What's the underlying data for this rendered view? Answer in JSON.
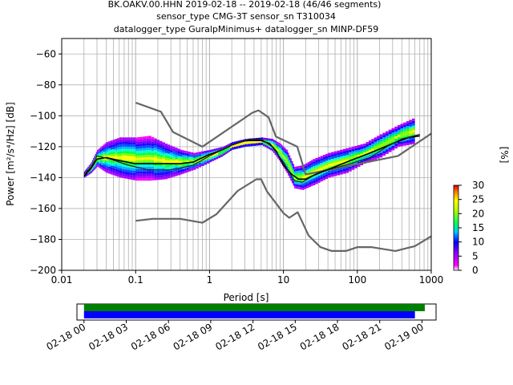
{
  "chart_data": [
    {
      "type": "heatmap",
      "title_lines": [
        "BK.OAKV.00.HHN   2019-02-18 -- 2019-02-18  (46/46 segments)",
        "sensor_type CMG-3T sensor_sn T310034",
        "datalogger_type GuralpMinimus+ datalogger_sn MINP-DF59"
      ],
      "xlabel": "Period [s]",
      "ylabel": "Power [m²/s⁴/Hz] [dB]",
      "x_scale": "log",
      "xlim": [
        0.01,
        1000
      ],
      "ylim": [
        -200,
        -50
      ],
      "xticks": [
        {
          "v": 0.01,
          "label": "0.01"
        },
        {
          "v": 0.1,
          "label": "0.1"
        },
        {
          "v": 1,
          "label": "1"
        },
        {
          "v": 10,
          "label": "10"
        },
        {
          "v": 100,
          "label": "100"
        },
        {
          "v": 1000,
          "label": "1000"
        }
      ],
      "yticks": [
        {
          "v": -60,
          "label": "−60"
        },
        {
          "v": -80,
          "label": "−80"
        },
        {
          "v": -100,
          "label": "−100"
        },
        {
          "v": -120,
          "label": "−120"
        },
        {
          "v": -140,
          "label": "−140"
        },
        {
          "v": -160,
          "label": "−160"
        },
        {
          "v": -180,
          "label": "−180"
        },
        {
          "v": -200,
          "label": "−200"
        }
      ],
      "grid": true,
      "series": [
        {
          "role": "noise-model-high",
          "color": "#666666",
          "points": [
            [
              0.1,
              -91.5
            ],
            [
              0.22,
              -97.4
            ],
            [
              0.32,
              -110.5
            ],
            [
              0.8,
              -120
            ],
            [
              3.8,
              -98
            ],
            [
              4.6,
              -96.5
            ],
            [
              6.3,
              -101
            ],
            [
              7.9,
              -113.5
            ],
            [
              15.4,
              -120
            ],
            [
              20,
              -138
            ],
            [
              354.8,
              -126
            ],
            [
              1000,
              -111.5
            ]
          ]
        },
        {
          "role": "noise-model-low",
          "color": "#666666",
          "points": [
            [
              0.1,
              -168
            ],
            [
              0.17,
              -166.7
            ],
            [
              0.4,
              -166.7
            ],
            [
              0.8,
              -169.2
            ],
            [
              1.24,
              -163.7
            ],
            [
              2.4,
              -148.6
            ],
            [
              4.3,
              -141.1
            ],
            [
              5,
              -141.1
            ],
            [
              6,
              -149
            ],
            [
              10,
              -163
            ],
            [
              12,
              -166
            ],
            [
              15.6,
              -162.4
            ],
            [
              21.9,
              -177.5
            ],
            [
              31.6,
              -185
            ],
            [
              45,
              -187.5
            ],
            [
              70,
              -187.5
            ],
            [
              101,
              -185
            ],
            [
              154,
              -185
            ],
            [
              328,
              -187.5
            ],
            [
              600,
              -184.4
            ],
            [
              1000,
              -178
            ]
          ]
        },
        {
          "role": "mean-psd",
          "color": "#000000",
          "points": [
            [
              0.02,
              -139
            ],
            [
              0.025,
              -134
            ],
            [
              0.03,
              -128
            ],
            [
              0.04,
              -127
            ],
            [
              0.06,
              -129
            ],
            [
              0.1,
              -131
            ],
            [
              0.2,
              -131
            ],
            [
              0.4,
              -131
            ],
            [
              0.6,
              -130
            ],
            [
              1,
              -125
            ],
            [
              1.5,
              -122
            ],
            [
              2,
              -119
            ],
            [
              3,
              -116
            ],
            [
              5,
              -116
            ],
            [
              6.5,
              -118
            ],
            [
              8,
              -123
            ],
            [
              10,
              -132
            ],
            [
              13,
              -138
            ],
            [
              16,
              -141
            ],
            [
              20,
              -141
            ],
            [
              30,
              -137
            ],
            [
              50,
              -133
            ],
            [
              80,
              -129
            ],
            [
              150,
              -124
            ],
            [
              300,
              -118
            ],
            [
              500,
              -114
            ],
            [
              700,
              -113
            ]
          ]
        },
        {
          "role": "mode-psd",
          "color": "#222222",
          "points": [
            [
              0.02,
              -138
            ],
            [
              0.025,
              -133
            ],
            [
              0.03,
              -126
            ],
            [
              0.045,
              -128
            ],
            [
              0.08,
              -132
            ],
            [
              0.15,
              -135
            ],
            [
              0.3,
              -135
            ],
            [
              0.6,
              -132
            ],
            [
              1,
              -126
            ],
            [
              2,
              -119
            ],
            [
              3.5,
              -115
            ],
            [
              5,
              -115
            ],
            [
              7,
              -120
            ],
            [
              10,
              -130
            ],
            [
              14,
              -142
            ],
            [
              18,
              -143
            ],
            [
              25,
              -139
            ],
            [
              40,
              -135
            ],
            [
              80,
              -131
            ],
            [
              150,
              -127
            ],
            [
              250,
              -120
            ],
            [
              400,
              -115
            ],
            [
              700,
              -112
            ]
          ]
        }
      ],
      "psd_density": {
        "description": "probability density of PSD in percent per period/power bin",
        "bands": [
          [
            0.02,
            -140,
            -136
          ],
          [
            0.025,
            -137,
            -130
          ],
          [
            0.03,
            -133,
            -122
          ],
          [
            0.04,
            -137,
            -117
          ],
          [
            0.06,
            -140,
            -114
          ],
          [
            0.1,
            -142,
            -114
          ],
          [
            0.15,
            -142,
            -113
          ],
          [
            0.25,
            -141,
            -118
          ],
          [
            0.4,
            -138,
            -122
          ],
          [
            0.6,
            -135,
            -124
          ],
          [
            1,
            -130,
            -122
          ],
          [
            1.5,
            -126,
            -120
          ],
          [
            2,
            -122,
            -117
          ],
          [
            3,
            -120,
            -115
          ],
          [
            5,
            -119,
            -114
          ],
          [
            7,
            -123,
            -115
          ],
          [
            9,
            -130,
            -118
          ],
          [
            11,
            -137,
            -122
          ],
          [
            14,
            -147,
            -133
          ],
          [
            18,
            -148,
            -132
          ],
          [
            25,
            -145,
            -128
          ],
          [
            40,
            -140,
            -124
          ],
          [
            70,
            -137,
            -121
          ],
          [
            120,
            -131,
            -118
          ],
          [
            200,
            -127,
            -112
          ],
          [
            350,
            -120,
            -106
          ],
          [
            600,
            -118,
            -101
          ]
        ]
      },
      "colorbar": {
        "label": "[%]",
        "min": 0,
        "max": 30,
        "ticks": [
          "0",
          "5",
          "10",
          "15",
          "20",
          "25",
          "30"
        ],
        "colormap": "pqlx"
      }
    },
    {
      "type": "timeline",
      "xticks": [
        "02-18 00",
        "02-18 03",
        "02-18 06",
        "02-18 09",
        "02-18 12",
        "02-18 15",
        "02-18 18",
        "02-18 21",
        "02-19 00"
      ],
      "range_hours": [
        -0.5,
        25
      ],
      "bars": [
        {
          "role": "data-coverage",
          "color": "#008000",
          "start_hours": 0,
          "end_hours": 24.2
        },
        {
          "role": "psd-coverage",
          "color": "#0000ff",
          "start_hours": 0,
          "end_hours": 23.5
        }
      ]
    }
  ]
}
